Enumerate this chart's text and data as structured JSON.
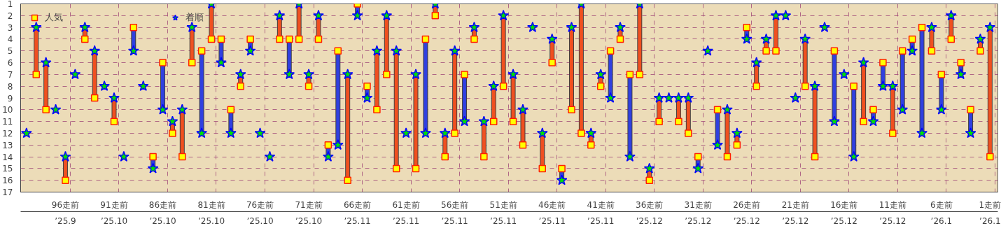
{
  "chart_data": {
    "type": "scatter",
    "categories": [
      null,
      null,
      null,
      null,
      "96走前\n’25.9",
      null,
      null,
      null,
      null,
      "91走前\n’25.10",
      null,
      null,
      null,
      null,
      "86走前\n’25.10",
      null,
      null,
      null,
      null,
      "81走前\n’25.10",
      null,
      null,
      null,
      null,
      "76走前\n’25.10",
      null,
      null,
      null,
      null,
      "71走前\n’25.10",
      null,
      null,
      null,
      null,
      "66走前\n’25.11",
      null,
      null,
      null,
      null,
      "61走前\n’25.11",
      null,
      null,
      null,
      null,
      "56走前\n’25.11",
      null,
      null,
      null,
      null,
      "51走前\n’25.11",
      null,
      null,
      null,
      null,
      "46走前\n’25.11",
      null,
      null,
      null,
      null,
      "41走前\n’25.11",
      null,
      null,
      null,
      null,
      "36走前\n’25.12",
      null,
      null,
      null,
      null,
      "31走前\n’25.12",
      null,
      null,
      null,
      null,
      "26走前\n’25.12",
      null,
      null,
      null,
      null,
      "21走前\n’25.12",
      null,
      null,
      null,
      null,
      "16走前\n’25.12",
      null,
      null,
      null,
      null,
      "11走前\n’25.12",
      null,
      null,
      null,
      null,
      "6走前\n’26.1",
      null,
      null,
      null,
      null,
      "1走前\n’26.1"
    ],
    "series": [
      {
        "name": "人気",
        "color": "#ffff00",
        "marker": "square",
        "values": [
          null,
          7,
          10,
          null,
          16,
          null,
          4,
          9,
          null,
          11,
          null,
          3,
          null,
          14,
          6,
          12,
          14,
          6,
          5,
          4,
          4,
          10,
          8,
          4,
          null,
          null,
          4,
          4,
          4,
          8,
          4,
          13,
          5,
          16,
          1,
          8,
          10,
          7,
          15,
          null,
          15,
          4,
          2,
          14,
          12,
          7,
          4,
          14,
          11,
          8,
          11,
          13,
          null,
          15,
          6,
          15,
          10,
          12,
          13,
          8,
          5,
          4,
          7,
          7,
          16,
          11,
          null,
          11,
          12,
          14,
          null,
          10,
          14,
          13,
          3,
          8,
          5,
          5,
          null,
          null,
          8,
          14,
          null,
          5,
          null,
          8,
          11,
          10,
          6,
          12,
          5,
          4,
          3,
          5,
          7,
          4,
          6,
          10,
          5,
          14
        ]
      },
      {
        "name": "着順",
        "color": "#00e000",
        "marker": "star",
        "values": [
          12,
          3,
          6,
          10,
          14,
          7,
          3,
          5,
          8,
          9,
          14,
          5,
          8,
          15,
          10,
          11,
          10,
          3,
          12,
          1,
          6,
          12,
          7,
          5,
          12,
          14,
          2,
          7,
          1,
          7,
          2,
          14,
          13,
          7,
          2,
          9,
          5,
          2,
          5,
          12,
          7,
          12,
          1,
          12,
          5,
          11,
          3,
          11,
          8,
          2,
          7,
          10,
          3,
          12,
          4,
          16,
          3,
          1,
          12,
          7,
          9,
          3,
          14,
          1,
          15,
          9,
          9,
          9,
          9,
          15,
          5,
          13,
          10,
          12,
          4,
          6,
          4,
          2,
          2,
          9,
          4,
          8,
          3,
          11,
          7,
          14,
          6,
          11,
          8,
          8,
          10,
          5,
          12,
          3,
          10,
          2,
          7,
          12,
          4,
          3
        ]
      }
    ],
    "ylim": [
      17,
      1
    ],
    "yticks": [
      1,
      2,
      3,
      4,
      5,
      6,
      7,
      8,
      9,
      10,
      11,
      12,
      13,
      14,
      15,
      16,
      17
    ],
    "grid": true,
    "legend": "top left"
  }
}
